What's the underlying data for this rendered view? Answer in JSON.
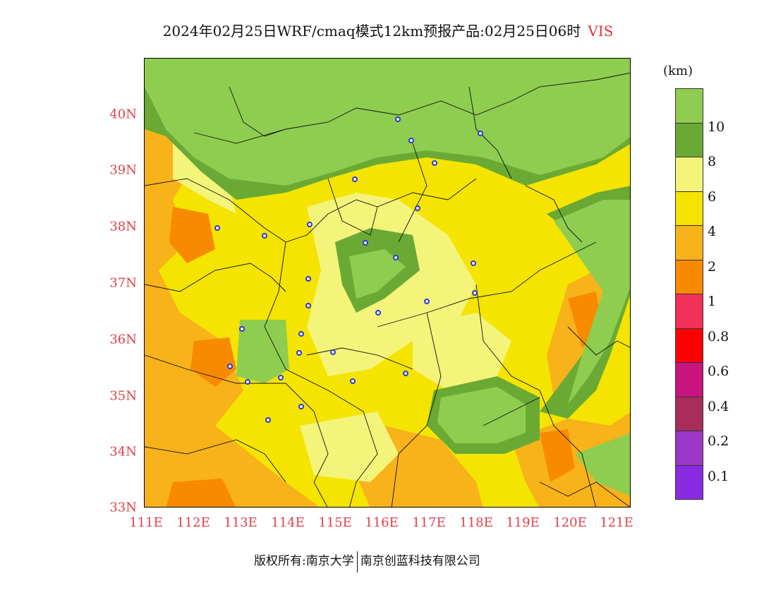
{
  "title": {
    "main": "2024年02月25日WRF/cmaq模式12km预报产品:02月25日06时",
    "variable": "VIS"
  },
  "map": {
    "lat_labels": [
      "40N",
      "39N",
      "38N",
      "37N",
      "36N",
      "35N",
      "34N",
      "33N"
    ],
    "lon_labels": [
      "111E",
      "112E",
      "113E",
      "114E",
      "115E",
      "116E",
      "117E",
      "118E",
      "119E",
      "120E",
      "121E"
    ]
  },
  "legend": {
    "unit": "(km)",
    "labels": [
      "10",
      "8",
      "6",
      "4",
      "2",
      "1",
      "0.8",
      "0.6",
      "0.4",
      "0.2",
      "0.1"
    ],
    "colors": [
      "#8fcd50",
      "#6aaa34",
      "#f4f47a",
      "#f4e400",
      "#f8b21a",
      "#f88a00",
      "#f23158",
      "#ff0000",
      "#c8147f",
      "#a82d5a",
      "#9a37c8",
      "#8a2be2"
    ]
  },
  "footer": {
    "left": "版权所有:南京大学",
    "right": "南京创蓝科技有限公司"
  }
}
